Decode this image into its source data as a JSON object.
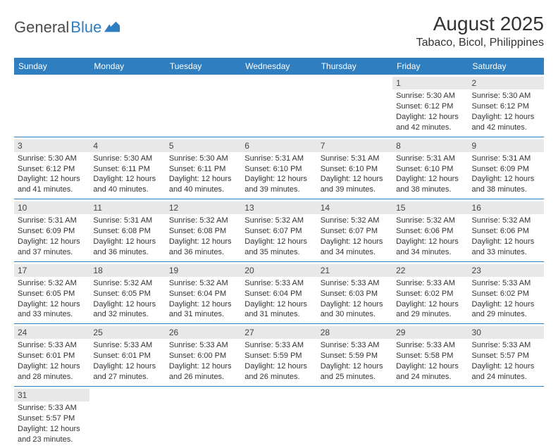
{
  "logo": {
    "text1": "General",
    "text2": "Blue"
  },
  "title": "August 2025",
  "location": "Tabaco, Bicol, Philippines",
  "colors": {
    "header_bg": "#2f7ec0",
    "daynum_bg": "#e8e8e8",
    "row_border": "#2f7ec0"
  },
  "daysOfWeek": [
    "Sunday",
    "Monday",
    "Tuesday",
    "Wednesday",
    "Thursday",
    "Friday",
    "Saturday"
  ],
  "weeks": [
    [
      {
        "empty": true
      },
      {
        "empty": true
      },
      {
        "empty": true
      },
      {
        "empty": true
      },
      {
        "empty": true
      },
      {
        "n": "1",
        "sunrise": "Sunrise: 5:30 AM",
        "sunset": "Sunset: 6:12 PM",
        "day1": "Daylight: 12 hours",
        "day2": "and 42 minutes."
      },
      {
        "n": "2",
        "sunrise": "Sunrise: 5:30 AM",
        "sunset": "Sunset: 6:12 PM",
        "day1": "Daylight: 12 hours",
        "day2": "and 42 minutes."
      }
    ],
    [
      {
        "n": "3",
        "sunrise": "Sunrise: 5:30 AM",
        "sunset": "Sunset: 6:12 PM",
        "day1": "Daylight: 12 hours",
        "day2": "and 41 minutes."
      },
      {
        "n": "4",
        "sunrise": "Sunrise: 5:30 AM",
        "sunset": "Sunset: 6:11 PM",
        "day1": "Daylight: 12 hours",
        "day2": "and 40 minutes."
      },
      {
        "n": "5",
        "sunrise": "Sunrise: 5:30 AM",
        "sunset": "Sunset: 6:11 PM",
        "day1": "Daylight: 12 hours",
        "day2": "and 40 minutes."
      },
      {
        "n": "6",
        "sunrise": "Sunrise: 5:31 AM",
        "sunset": "Sunset: 6:10 PM",
        "day1": "Daylight: 12 hours",
        "day2": "and 39 minutes."
      },
      {
        "n": "7",
        "sunrise": "Sunrise: 5:31 AM",
        "sunset": "Sunset: 6:10 PM",
        "day1": "Daylight: 12 hours",
        "day2": "and 39 minutes."
      },
      {
        "n": "8",
        "sunrise": "Sunrise: 5:31 AM",
        "sunset": "Sunset: 6:10 PM",
        "day1": "Daylight: 12 hours",
        "day2": "and 38 minutes."
      },
      {
        "n": "9",
        "sunrise": "Sunrise: 5:31 AM",
        "sunset": "Sunset: 6:09 PM",
        "day1": "Daylight: 12 hours",
        "day2": "and 38 minutes."
      }
    ],
    [
      {
        "n": "10",
        "sunrise": "Sunrise: 5:31 AM",
        "sunset": "Sunset: 6:09 PM",
        "day1": "Daylight: 12 hours",
        "day2": "and 37 minutes."
      },
      {
        "n": "11",
        "sunrise": "Sunrise: 5:31 AM",
        "sunset": "Sunset: 6:08 PM",
        "day1": "Daylight: 12 hours",
        "day2": "and 36 minutes."
      },
      {
        "n": "12",
        "sunrise": "Sunrise: 5:32 AM",
        "sunset": "Sunset: 6:08 PM",
        "day1": "Daylight: 12 hours",
        "day2": "and 36 minutes."
      },
      {
        "n": "13",
        "sunrise": "Sunrise: 5:32 AM",
        "sunset": "Sunset: 6:07 PM",
        "day1": "Daylight: 12 hours",
        "day2": "and 35 minutes."
      },
      {
        "n": "14",
        "sunrise": "Sunrise: 5:32 AM",
        "sunset": "Sunset: 6:07 PM",
        "day1": "Daylight: 12 hours",
        "day2": "and 34 minutes."
      },
      {
        "n": "15",
        "sunrise": "Sunrise: 5:32 AM",
        "sunset": "Sunset: 6:06 PM",
        "day1": "Daylight: 12 hours",
        "day2": "and 34 minutes."
      },
      {
        "n": "16",
        "sunrise": "Sunrise: 5:32 AM",
        "sunset": "Sunset: 6:06 PM",
        "day1": "Daylight: 12 hours",
        "day2": "and 33 minutes."
      }
    ],
    [
      {
        "n": "17",
        "sunrise": "Sunrise: 5:32 AM",
        "sunset": "Sunset: 6:05 PM",
        "day1": "Daylight: 12 hours",
        "day2": "and 33 minutes."
      },
      {
        "n": "18",
        "sunrise": "Sunrise: 5:32 AM",
        "sunset": "Sunset: 6:05 PM",
        "day1": "Daylight: 12 hours",
        "day2": "and 32 minutes."
      },
      {
        "n": "19",
        "sunrise": "Sunrise: 5:32 AM",
        "sunset": "Sunset: 6:04 PM",
        "day1": "Daylight: 12 hours",
        "day2": "and 31 minutes."
      },
      {
        "n": "20",
        "sunrise": "Sunrise: 5:33 AM",
        "sunset": "Sunset: 6:04 PM",
        "day1": "Daylight: 12 hours",
        "day2": "and 31 minutes."
      },
      {
        "n": "21",
        "sunrise": "Sunrise: 5:33 AM",
        "sunset": "Sunset: 6:03 PM",
        "day1": "Daylight: 12 hours",
        "day2": "and 30 minutes."
      },
      {
        "n": "22",
        "sunrise": "Sunrise: 5:33 AM",
        "sunset": "Sunset: 6:02 PM",
        "day1": "Daylight: 12 hours",
        "day2": "and 29 minutes."
      },
      {
        "n": "23",
        "sunrise": "Sunrise: 5:33 AM",
        "sunset": "Sunset: 6:02 PM",
        "day1": "Daylight: 12 hours",
        "day2": "and 29 minutes."
      }
    ],
    [
      {
        "n": "24",
        "sunrise": "Sunrise: 5:33 AM",
        "sunset": "Sunset: 6:01 PM",
        "day1": "Daylight: 12 hours",
        "day2": "and 28 minutes."
      },
      {
        "n": "25",
        "sunrise": "Sunrise: 5:33 AM",
        "sunset": "Sunset: 6:01 PM",
        "day1": "Daylight: 12 hours",
        "day2": "and 27 minutes."
      },
      {
        "n": "26",
        "sunrise": "Sunrise: 5:33 AM",
        "sunset": "Sunset: 6:00 PM",
        "day1": "Daylight: 12 hours",
        "day2": "and 26 minutes."
      },
      {
        "n": "27",
        "sunrise": "Sunrise: 5:33 AM",
        "sunset": "Sunset: 5:59 PM",
        "day1": "Daylight: 12 hours",
        "day2": "and 26 minutes."
      },
      {
        "n": "28",
        "sunrise": "Sunrise: 5:33 AM",
        "sunset": "Sunset: 5:59 PM",
        "day1": "Daylight: 12 hours",
        "day2": "and 25 minutes."
      },
      {
        "n": "29",
        "sunrise": "Sunrise: 5:33 AM",
        "sunset": "Sunset: 5:58 PM",
        "day1": "Daylight: 12 hours",
        "day2": "and 24 minutes."
      },
      {
        "n": "30",
        "sunrise": "Sunrise: 5:33 AM",
        "sunset": "Sunset: 5:57 PM",
        "day1": "Daylight: 12 hours",
        "day2": "and 24 minutes."
      }
    ],
    [
      {
        "n": "31",
        "sunrise": "Sunrise: 5:33 AM",
        "sunset": "Sunset: 5:57 PM",
        "day1": "Daylight: 12 hours",
        "day2": "and 23 minutes."
      },
      {
        "empty": true
      },
      {
        "empty": true
      },
      {
        "empty": true
      },
      {
        "empty": true
      },
      {
        "empty": true
      },
      {
        "empty": true
      }
    ]
  ]
}
